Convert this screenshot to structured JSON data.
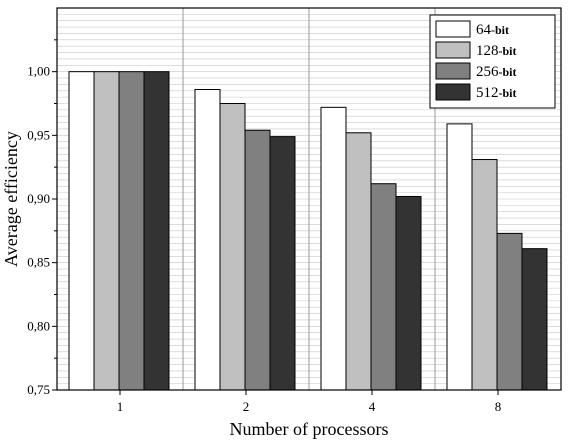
{
  "chart_data": {
    "type": "bar",
    "title": "",
    "xlabel": "Number of processors",
    "ylabel": "Average efficiency",
    "categories": [
      "1",
      "2",
      "4",
      "8"
    ],
    "ylim": [
      0.75,
      1.05
    ],
    "yticks": [
      "0,75",
      "0,80",
      "0,85",
      "0,90",
      "0,95",
      "1,00"
    ],
    "grid": true,
    "legend_position": "top-right",
    "series": [
      {
        "name": "64",
        "unit": "-bit",
        "color": "#ffffff",
        "values": [
          1.0,
          0.986,
          0.972,
          0.959
        ]
      },
      {
        "name": "128",
        "unit": "-bit",
        "color": "#c0c0c0",
        "values": [
          1.0,
          0.975,
          0.952,
          0.931
        ]
      },
      {
        "name": "256",
        "unit": "-bit",
        "color": "#808080",
        "values": [
          1.0,
          0.954,
          0.912,
          0.873
        ]
      },
      {
        "name": "512",
        "unit": "-bit",
        "color": "#333333",
        "values": [
          1.0,
          0.949,
          0.902,
          0.861
        ]
      }
    ]
  }
}
